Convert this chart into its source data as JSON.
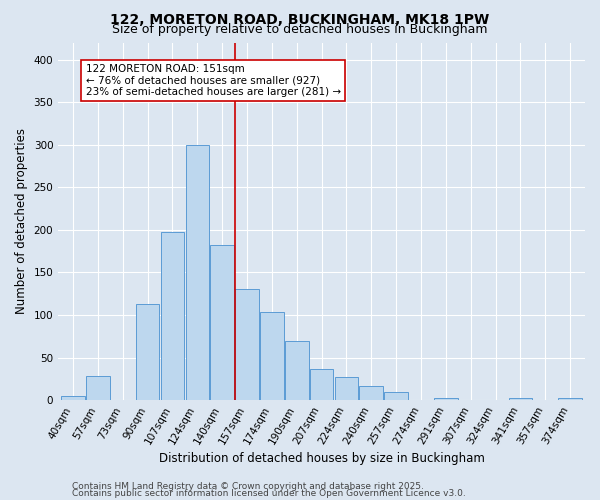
{
  "title": "122, MORETON ROAD, BUCKINGHAM, MK18 1PW",
  "subtitle": "Size of property relative to detached houses in Buckingham",
  "xlabel": "Distribution of detached houses by size in Buckingham",
  "ylabel": "Number of detached properties",
  "bin_labels": [
    "40sqm",
    "57sqm",
    "73sqm",
    "90sqm",
    "107sqm",
    "124sqm",
    "140sqm",
    "157sqm",
    "174sqm",
    "190sqm",
    "207sqm",
    "224sqm",
    "240sqm",
    "257sqm",
    "274sqm",
    "291sqm",
    "307sqm",
    "324sqm",
    "341sqm",
    "357sqm",
    "374sqm"
  ],
  "bar_heights": [
    5,
    28,
    0,
    113,
    197,
    300,
    182,
    130,
    103,
    70,
    37,
    27,
    17,
    9,
    0,
    3,
    0,
    0,
    2,
    0,
    3
  ],
  "bar_color": "#bdd7ee",
  "bar_edgecolor": "#5b9bd5",
  "background_color": "#dce6f1",
  "grid_color": "#ffffff",
  "vline_index": 6.5,
  "vline_color": "#cc0000",
  "annotation_text": "122 MORETON ROAD: 151sqm\n← 76% of detached houses are smaller (927)\n23% of semi-detached houses are larger (281) →",
  "annotation_box_facecolor": "#ffffff",
  "annotation_box_edgecolor": "#cc0000",
  "ylim": [
    0,
    420
  ],
  "yticks": [
    0,
    50,
    100,
    150,
    200,
    250,
    300,
    350,
    400
  ],
  "footnote1": "Contains HM Land Registry data © Crown copyright and database right 2025.",
  "footnote2": "Contains public sector information licensed under the Open Government Licence v3.0.",
  "title_fontsize": 10,
  "subtitle_fontsize": 9,
  "axis_label_fontsize": 8.5,
  "tick_fontsize": 7.5,
  "annotation_fontsize": 7.5,
  "footnote_fontsize": 6.5
}
